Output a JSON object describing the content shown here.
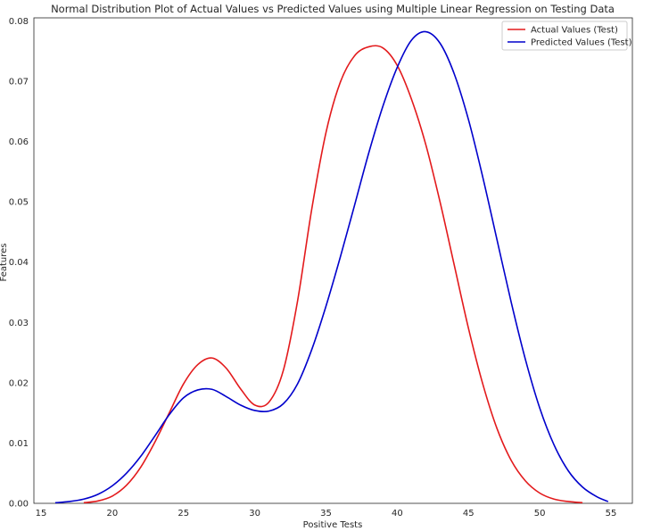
{
  "chart_data": {
    "type": "line",
    "title": "Normal Distribution Plot of Actual Values vs Predicted Values using Multiple Linear Regression on Testing Data",
    "xlabel": "Positive Tests",
    "ylabel": "Features",
    "xlim": [
      14.5,
      56.5
    ],
    "ylim": [
      0,
      0.0805
    ],
    "x_ticks": [
      15,
      20,
      25,
      30,
      35,
      40,
      45,
      50,
      55
    ],
    "y_ticks": [
      0.0,
      0.01,
      0.02,
      0.03,
      0.04,
      0.05,
      0.06,
      0.07,
      0.08
    ],
    "x_tick_labels": [
      "15",
      "20",
      "25",
      "30",
      "35",
      "40",
      "45",
      "50",
      "55"
    ],
    "y_tick_labels": [
      "0.00",
      "0.01",
      "0.02",
      "0.03",
      "0.04",
      "0.05",
      "0.06",
      "0.07",
      "0.08"
    ],
    "grid": false,
    "legend_position": "top-right",
    "series": [
      {
        "name": "Actual Values (Test)",
        "color": "#e31a1c",
        "x": [
          18,
          19,
          20,
          21,
          22,
          23,
          24,
          25,
          26,
          27,
          28,
          29,
          30,
          31,
          32,
          33,
          34,
          35,
          36,
          37,
          38,
          39,
          40,
          41,
          42,
          43,
          44,
          45,
          46,
          47,
          48,
          49,
          50,
          51,
          52,
          53
        ],
        "y": [
          0.0001,
          0.0004,
          0.0012,
          0.003,
          0.006,
          0.0102,
          0.015,
          0.0198,
          0.023,
          0.0241,
          0.0224,
          0.019,
          0.0163,
          0.0168,
          0.022,
          0.0335,
          0.0488,
          0.0615,
          0.0698,
          0.0742,
          0.0757,
          0.0755,
          0.0726,
          0.067,
          0.0595,
          0.05,
          0.0395,
          0.029,
          0.0198,
          0.0124,
          0.0071,
          0.0037,
          0.0017,
          0.0007,
          0.0003,
          0.0001
        ]
      },
      {
        "name": "Predicted Values (Test)",
        "color": "#0000cc",
        "x": [
          16,
          17,
          18,
          19,
          20,
          21,
          22,
          23,
          24,
          25,
          26,
          27,
          28,
          29,
          30,
          31,
          32,
          33,
          34,
          35,
          36,
          37,
          38,
          39,
          40,
          41,
          42,
          43,
          44,
          45,
          46,
          47,
          48,
          49,
          50,
          51,
          52,
          53,
          54,
          54.8
        ],
        "y": [
          0.0001,
          0.0003,
          0.0007,
          0.0015,
          0.0029,
          0.005,
          0.0078,
          0.0112,
          0.0147,
          0.0175,
          0.0188,
          0.0189,
          0.0177,
          0.0163,
          0.0154,
          0.0153,
          0.0165,
          0.0198,
          0.0255,
          0.0327,
          0.0408,
          0.0494,
          0.0581,
          0.0659,
          0.0723,
          0.0768,
          0.0782,
          0.0763,
          0.0712,
          0.0636,
          0.0541,
          0.0437,
          0.0333,
          0.0238,
          0.0158,
          0.0097,
          0.0054,
          0.0027,
          0.0011,
          0.0003
        ]
      }
    ]
  }
}
